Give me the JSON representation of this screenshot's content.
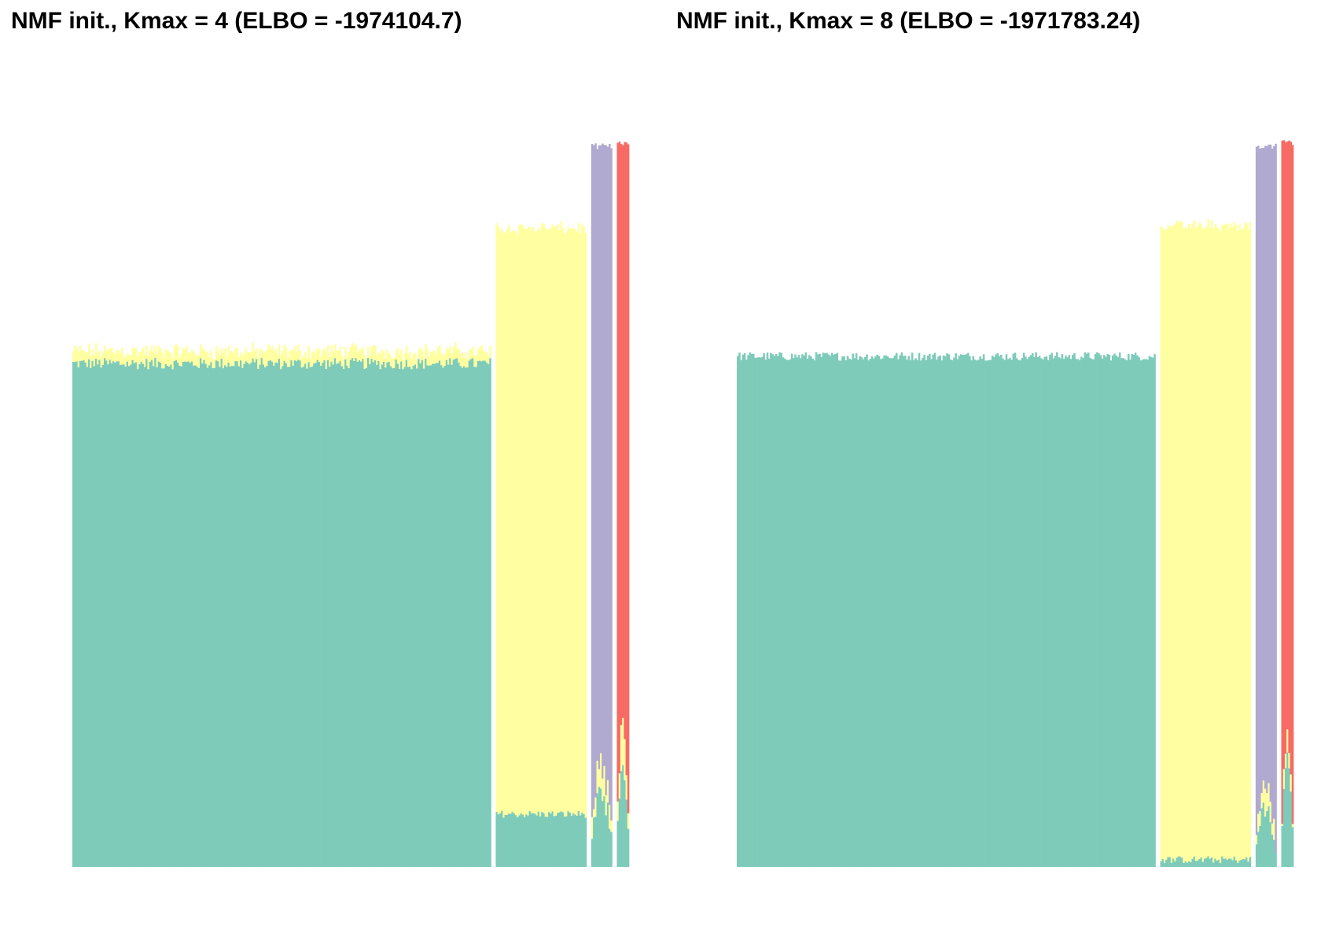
{
  "colors": {
    "teal": "#7ecbba",
    "yellow": "#ffffa1",
    "purple": "#b0a9d0",
    "red": "#f76b64",
    "background": "#ffffff"
  },
  "chart_data": [
    {
      "type": "bar",
      "subtype": "stacked-structure-plot",
      "title": "NMF init., Kmax = 4 (ELBO = -1974104.7)",
      "xlabel": "",
      "ylabel": "",
      "axes_visible": false,
      "grid": false,
      "legend": "none",
      "ylim": [
        0,
        1
      ],
      "groups": [
        {
          "n_bars": 240,
          "series": [
            {
              "color": "teal",
              "base": 0.695,
              "jitter": 0.008
            },
            {
              "color": "yellow",
              "base": 0.017,
              "jitter": 0.006
            }
          ]
        },
        {
          "n_bars": 52,
          "series": [
            {
              "color": "teal",
              "base": 0.073,
              "jitter": 0.005
            },
            {
              "color": "yellow",
              "base": 0.809,
              "jitter": 0.006
            }
          ]
        },
        {
          "n_bars": 12,
          "series": [
            {
              "color": "teal",
              "base": 0.065,
              "jitter": 0.02,
              "profile": "hump"
            },
            {
              "color": "yellow",
              "base": 0.025,
              "jitter": 0.015,
              "profile": "hump"
            },
            {
              "color": "purple",
              "base": 0.905,
              "jitter": 0.004,
              "fill_to": 0.995
            }
          ]
        },
        {
          "n_bars": 7,
          "series": [
            {
              "color": "teal",
              "base": 0.09,
              "jitter": 0.01,
              "profile": "hump"
            },
            {
              "color": "yellow",
              "base": 0.04,
              "jitter": 0.01,
              "profile": "hump"
            },
            {
              "color": "red",
              "base": 0.87,
              "jitter": 0.004,
              "fill_to": 1.0
            }
          ]
        }
      ]
    },
    {
      "type": "bar",
      "subtype": "stacked-structure-plot",
      "title": "NMF init., Kmax = 8 (ELBO = -1971783.24)",
      "xlabel": "",
      "ylabel": "",
      "axes_visible": false,
      "grid": false,
      "legend": "none",
      "ylim": [
        0,
        1
      ],
      "groups": [
        {
          "n_bars": 240,
          "series": [
            {
              "color": "teal",
              "base": 0.705,
              "jitter": 0.006
            }
          ]
        },
        {
          "n_bars": 52,
          "series": [
            {
              "color": "teal",
              "base": 0.01,
              "jitter": 0.005
            },
            {
              "color": "yellow",
              "base": 0.875,
              "jitter": 0.005
            }
          ]
        },
        {
          "n_bars": 12,
          "series": [
            {
              "color": "teal",
              "base": 0.05,
              "jitter": 0.02,
              "profile": "hump"
            },
            {
              "color": "yellow",
              "base": 0.02,
              "jitter": 0.015,
              "profile": "hump"
            },
            {
              "color": "purple",
              "base": 0.92,
              "jitter": 0.004,
              "fill_to": 0.995
            }
          ]
        },
        {
          "n_bars": 7,
          "series": [
            {
              "color": "teal",
              "base": 0.1,
              "jitter": 0.01,
              "profile": "hump"
            },
            {
              "color": "yellow",
              "base": 0.02,
              "jitter": 0.01,
              "profile": "hump"
            },
            {
              "color": "red",
              "base": 0.88,
              "jitter": 0.004,
              "fill_to": 1.0
            }
          ]
        }
      ]
    }
  ]
}
